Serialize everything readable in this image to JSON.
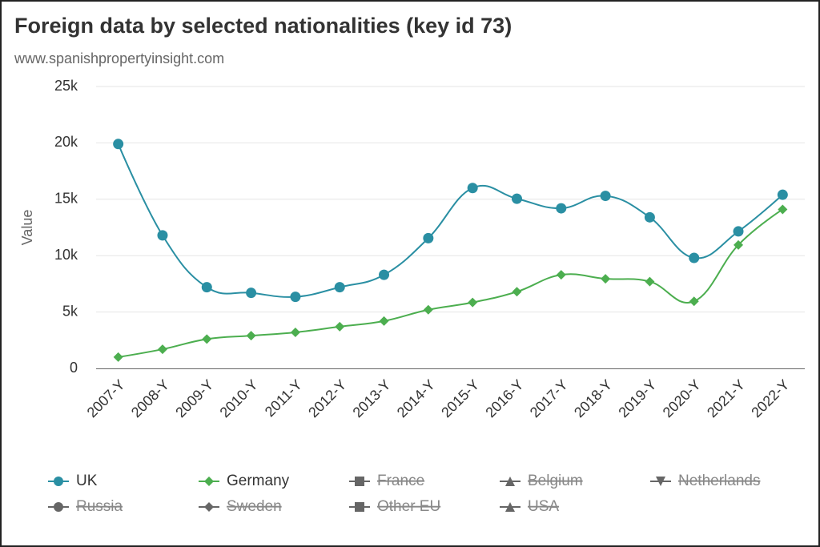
{
  "chart_data": {
    "type": "spline",
    "title": "Foreign data by selected nationalities (key id 73)",
    "subtitle": "www.spanishpropertyinsight.com",
    "y_axis_label": "Value",
    "categories": [
      "2007-Y",
      "2008-Y",
      "2009-Y",
      "2010-Y",
      "2011-Y",
      "2012-Y",
      "2013-Y",
      "2014-Y",
      "2015-Y",
      "2016-Y",
      "2017-Y",
      "2018-Y",
      "2019-Y",
      "2020-Y",
      "2021-Y",
      "2022-Y"
    ],
    "ylim": [
      0,
      25000
    ],
    "yticks": [
      {
        "value": 0,
        "label": "0"
      },
      {
        "value": 5000,
        "label": "5k"
      },
      {
        "value": 10000,
        "label": "10k"
      },
      {
        "value": 15000,
        "label": "15k"
      },
      {
        "value": 20000,
        "label": "20k"
      },
      {
        "value": 25000,
        "label": "25k"
      }
    ],
    "grid": true,
    "legend": "bottom",
    "series": [
      {
        "name": "UK",
        "color": "#2a8fa3",
        "marker": "circle",
        "visible": true,
        "values": [
          19900,
          11800,
          7200,
          6700,
          6350,
          7200,
          8300,
          11550,
          16000,
          15050,
          14200,
          15300,
          13400,
          9800,
          12150,
          15400
        ]
      },
      {
        "name": "Germany",
        "color": "#4cae4f",
        "marker": "diamond",
        "visible": true,
        "values": [
          1000,
          1700,
          2600,
          2900,
          3200,
          3700,
          4200,
          5200,
          5850,
          6800,
          8300,
          7950,
          7700,
          5950,
          10950,
          14100
        ]
      },
      {
        "name": "France",
        "marker": "square",
        "visible": false
      },
      {
        "name": "Belgium",
        "marker": "triangle",
        "visible": false
      },
      {
        "name": "Netherlands",
        "marker": "triangle-down",
        "visible": false
      },
      {
        "name": "Russia",
        "marker": "circle",
        "visible": false
      },
      {
        "name": "Sweden",
        "marker": "diamond",
        "visible": false
      },
      {
        "name": "Other EU",
        "marker": "square",
        "visible": false
      },
      {
        "name": "USA",
        "marker": "triangle",
        "visible": false
      }
    ]
  }
}
